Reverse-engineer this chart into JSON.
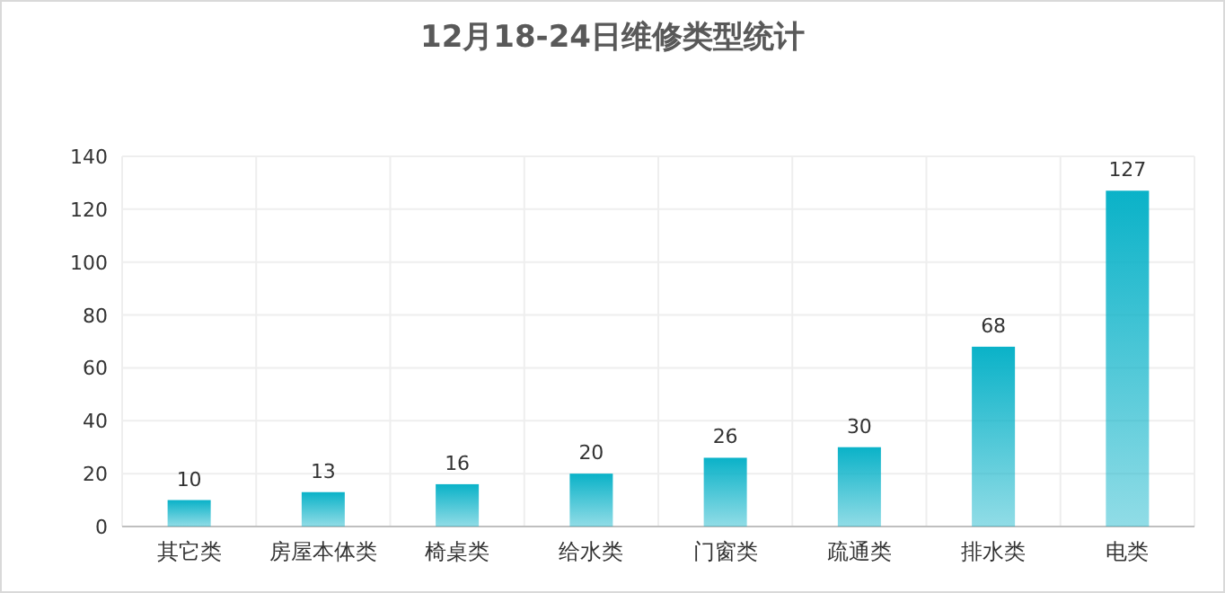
{
  "chart_data": {
    "type": "bar",
    "title": "12月18-24日维修类型统计",
    "categories": [
      "其它类",
      "房屋本体类",
      "椅桌类",
      "给水类",
      "门窗类",
      "疏通类",
      "排水类",
      "电类"
    ],
    "values": [
      10,
      13,
      16,
      20,
      26,
      30,
      68,
      127
    ],
    "color": "#0ab2c8",
    "ylim": [
      0,
      140
    ],
    "yticks": [
      0,
      20,
      40,
      60,
      80,
      100,
      120,
      140
    ],
    "grid": true,
    "data_labels": true
  }
}
